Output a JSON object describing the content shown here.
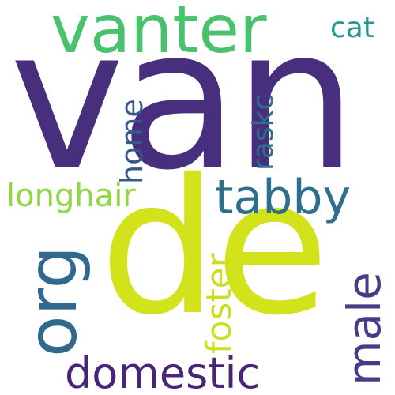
{
  "words": {
    "van": {
      "text": "van",
      "color": "#472f7d"
    },
    "de": {
      "text": "de",
      "color": "#d2e21b"
    },
    "vanter": {
      "text": "vanter",
      "color": "#4ac16d"
    },
    "org": {
      "text": "org",
      "color": "#31688e"
    },
    "tabby": {
      "text": "tabby",
      "color": "#2e6f8e"
    },
    "domestic": {
      "text": "domestic",
      "color": "#482576"
    },
    "male": {
      "text": "male",
      "color": "#433e85"
    },
    "longhair": {
      "text": "longhair",
      "color": "#90d743"
    },
    "foster": {
      "text": "foster",
      "color": "#c8e020"
    },
    "raskc": {
      "text": "raskc",
      "color": "#2d708e"
    },
    "home": {
      "text": "home",
      "color": "#38588c"
    },
    "cat": {
      "text": "cat",
      "color": "#1f9a8a"
    }
  }
}
